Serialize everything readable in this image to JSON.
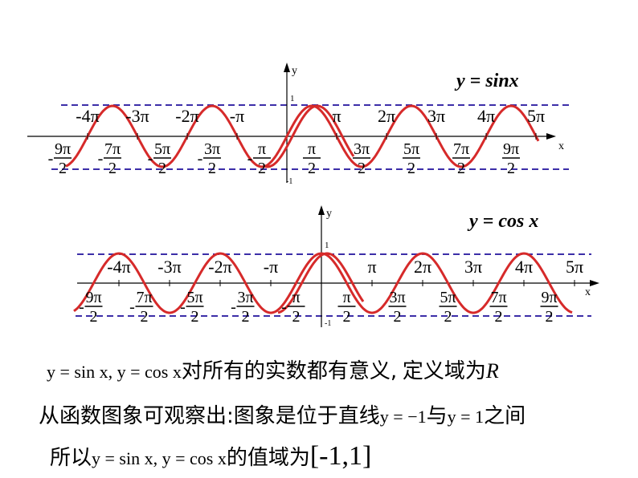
{
  "graph_sin": {
    "title": "y = sinx",
    "y_axis_label": "y",
    "x_axis_label": "x",
    "y_tick_top": "1",
    "y_tick_bottom": "-1",
    "pi_labels_top": [
      "-4π",
      "-3π",
      "-2π",
      "-π",
      "π",
      "2π",
      "3π",
      "4π",
      "5π"
    ],
    "half_pi_labels": [
      "9π",
      "7π",
      "5π",
      "3π",
      "π",
      "π",
      "3π",
      "5π",
      "7π",
      "9π"
    ],
    "denominator": "2",
    "minus": "-"
  },
  "graph_cos": {
    "title": "y = cos x",
    "y_axis_label": "y",
    "x_axis_label": "x",
    "y_tick_top": "1",
    "y_tick_bottom": "-1",
    "pi_labels_top": [
      "-4π",
      "-3π",
      "-2π",
      "-π",
      "π",
      "2π",
      "3π",
      "4π",
      "5π"
    ],
    "half_pi_labels": [
      "9π",
      "7π",
      "5π",
      "3π",
      "π",
      "π",
      "3π",
      "5π",
      "7π",
      "9π"
    ],
    "denominator": "2",
    "minus": "-"
  },
  "colors": {
    "curve": "#d62a2a",
    "dashed_line": "#3c2ea8",
    "axis": "#000000"
  },
  "text": {
    "line1_math": "y = sin x, y = cos x",
    "line1_text": "对所有的实数都有意义",
    "line1_comma": ",",
    "line1_text2": "定义域为",
    "line1_R": "R",
    "line2_text": "从函数图象可观察出",
    "line2_colon": ":",
    "line2_text2": "图象是位于直线",
    "line2_math1": "y = −1",
    "line2_and": "与",
    "line2_math2": "y = 1",
    "line2_text3": "之间",
    "line3_text": "所以",
    "line3_math": "y = sin x, y = cos x",
    "line3_text2": "的值域为",
    "line3_range": "[-1,1]"
  }
}
